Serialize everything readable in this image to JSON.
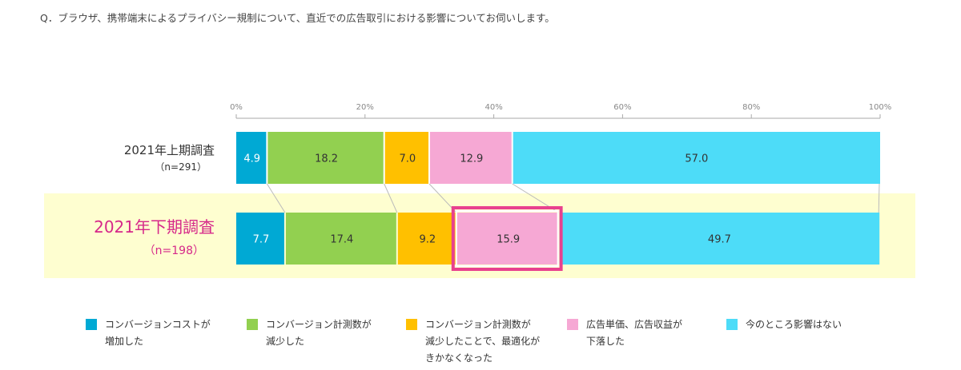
{
  "question": "Q．ブラウザ、携帯端末によるプライバシー規制について、直近での広告取引における影響についてお伺いします。",
  "chart_data": {
    "type": "bar",
    "orientation": "horizontal-stacked-100",
    "xlim": [
      0,
      100
    ],
    "ticks": [
      "0%",
      "20%",
      "40%",
      "60%",
      "80%",
      "100%"
    ],
    "tick_values": [
      0,
      20,
      40,
      60,
      80,
      100
    ],
    "categories": [
      {
        "label": "2021年上期調査",
        "n": "（n=291）",
        "highlight": false
      },
      {
        "label": "2021年下期調査",
        "n": "（n=198）",
        "highlight": true
      }
    ],
    "series": [
      {
        "name": "コンバージョンコストが\n増加した",
        "color": "#00a9d4",
        "values": [
          4.9,
          7.7
        ],
        "labels": [
          "4.9",
          "7.7"
        ],
        "label_color": "#ffffff"
      },
      {
        "name": "コンバージョン計測数が\n減少した",
        "color": "#92d050",
        "values": [
          18.2,
          17.4
        ],
        "labels": [
          "18.2",
          "17.4"
        ],
        "label_color": "#333333"
      },
      {
        "name": "コンバージョン計測数が\n減少したことで、最適化が\nきかなくなった",
        "color": "#ffc000",
        "values": [
          7.0,
          9.2
        ],
        "labels": [
          "7.0",
          "9.2"
        ],
        "label_color": "#333333"
      },
      {
        "name": "広告単価、広告収益が\n下落した",
        "color": "#f6a8d4",
        "values": [
          12.9,
          15.9
        ],
        "labels": [
          "12.9",
          "15.9"
        ],
        "label_color": "#333333"
      },
      {
        "name": "今のところ影響はない",
        "color": "#4ddcf8",
        "values": [
          57.0,
          49.7
        ],
        "labels": [
          "57.0",
          "49.7"
        ],
        "label_color": "#333333"
      }
    ],
    "highlighted_segment": {
      "category": 1,
      "series": 3
    },
    "colors": {
      "highlight_text": "#d6288a",
      "highlight_band": "#fefed0",
      "highlight_box": "#e8418e"
    }
  }
}
